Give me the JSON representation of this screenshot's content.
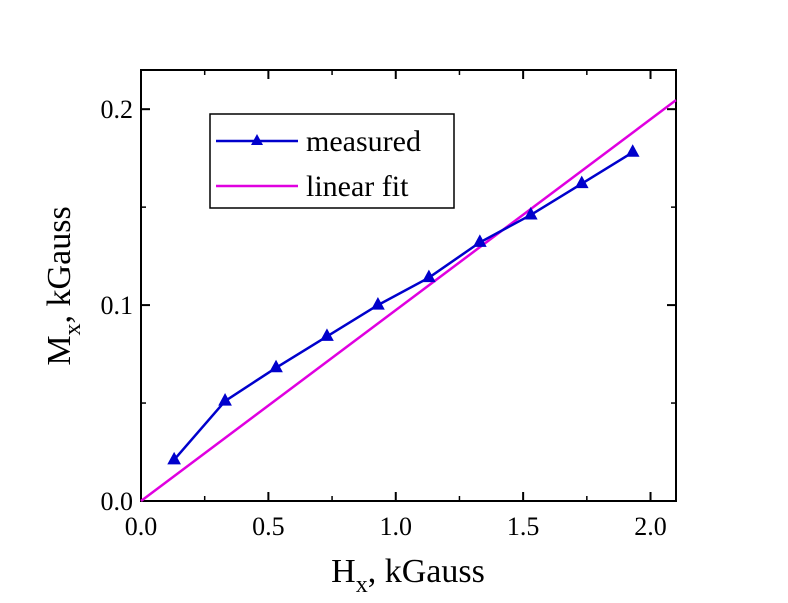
{
  "chart_data": {
    "type": "line",
    "xlabel": {
      "main": "H",
      "sub": "x",
      "rest": ", kGauss"
    },
    "ylabel": {
      "main": "M",
      "sub": "x",
      "rest": ", kGauss"
    },
    "xlim": [
      0.0,
      2.1
    ],
    "ylim": [
      0.0,
      0.22
    ],
    "xticks": [
      0.0,
      0.5,
      1.0,
      1.5,
      2.0
    ],
    "xtick_labels": [
      "0.0",
      "0.5",
      "1.0",
      "1.5",
      "2.0"
    ],
    "yticks": [
      0.0,
      0.1,
      0.2
    ],
    "ytick_labels": [
      "0.0",
      "0.1",
      "0.2"
    ],
    "grid": false,
    "legend": "top-left",
    "series": [
      {
        "name": "measured",
        "color": "#0000cc",
        "marker": "triangle",
        "x": [
          0.13,
          0.33,
          0.53,
          0.73,
          0.93,
          1.13,
          1.33,
          1.53,
          1.73,
          1.93
        ],
        "y": [
          0.021,
          0.051,
          0.068,
          0.084,
          0.1,
          0.114,
          0.132,
          0.146,
          0.162,
          0.178
        ]
      },
      {
        "name": "linear fit",
        "color": "#e000e0",
        "marker": "none",
        "x": [
          0.0,
          2.1
        ],
        "y": [
          0.0,
          0.2046
        ]
      }
    ]
  }
}
